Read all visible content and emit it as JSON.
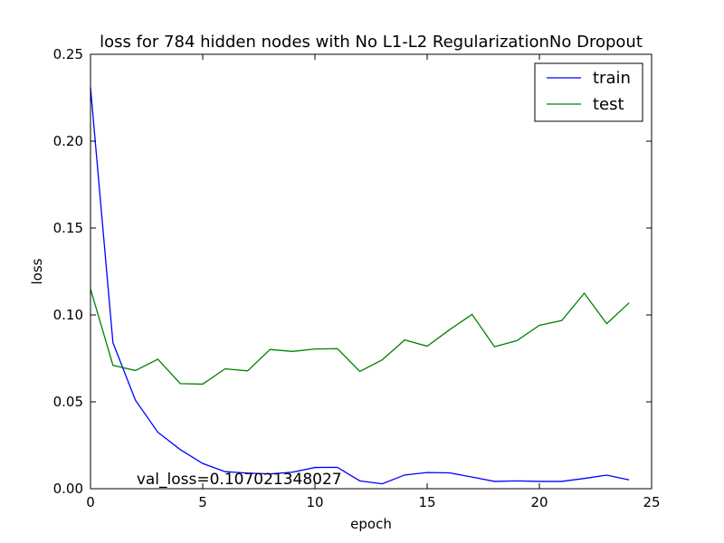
{
  "chart_data": {
    "type": "line",
    "title": "loss for 784 hidden nodes with No L1-L2 RegularizationNo Dropout",
    "xlabel": "epoch",
    "ylabel": "loss",
    "xlim": [
      0,
      25
    ],
    "ylim": [
      0,
      0.25
    ],
    "xticks": [
      0,
      5,
      10,
      15,
      20,
      25
    ],
    "xtick_labels": [
      "0",
      "5",
      "10",
      "15",
      "20",
      "25"
    ],
    "yticks": [
      0,
      0.05,
      0.1,
      0.15,
      0.2,
      0.25
    ],
    "ytick_labels": [
      "0.00",
      "0.05",
      "0.10",
      "0.15",
      "0.20",
      "0.25"
    ],
    "grid": false,
    "legend_position": "top-right",
    "x": [
      0,
      1,
      2,
      3,
      4,
      5,
      6,
      7,
      8,
      9,
      10,
      11,
      12,
      13,
      14,
      15,
      16,
      17,
      18,
      19,
      20,
      21,
      22,
      23,
      24
    ],
    "series": [
      {
        "name": "train",
        "color": "#0000ff",
        "values": [
          0.231,
          0.084,
          0.051,
          0.0325,
          0.0225,
          0.0145,
          0.0098,
          0.009,
          0.0085,
          0.0095,
          0.0122,
          0.0123,
          0.0045,
          0.0028,
          0.0079,
          0.0093,
          0.0091,
          0.0067,
          0.0042,
          0.0045,
          0.0042,
          0.0042,
          0.0059,
          0.0078,
          0.0051
        ]
      },
      {
        "name": "test",
        "color": "#008000",
        "values": [
          0.115,
          0.071,
          0.068,
          0.0745,
          0.0605,
          0.0602,
          0.069,
          0.0678,
          0.0801,
          0.079,
          0.0804,
          0.0806,
          0.0675,
          0.0742,
          0.0856,
          0.082,
          0.0915,
          0.1003,
          0.0817,
          0.0852,
          0.094,
          0.0968,
          0.1125,
          0.095,
          0.107
        ]
      }
    ],
    "annotations": [
      {
        "text": "val_loss=0.107021348027",
        "x": 2.05,
        "y": 0.0025
      }
    ]
  }
}
